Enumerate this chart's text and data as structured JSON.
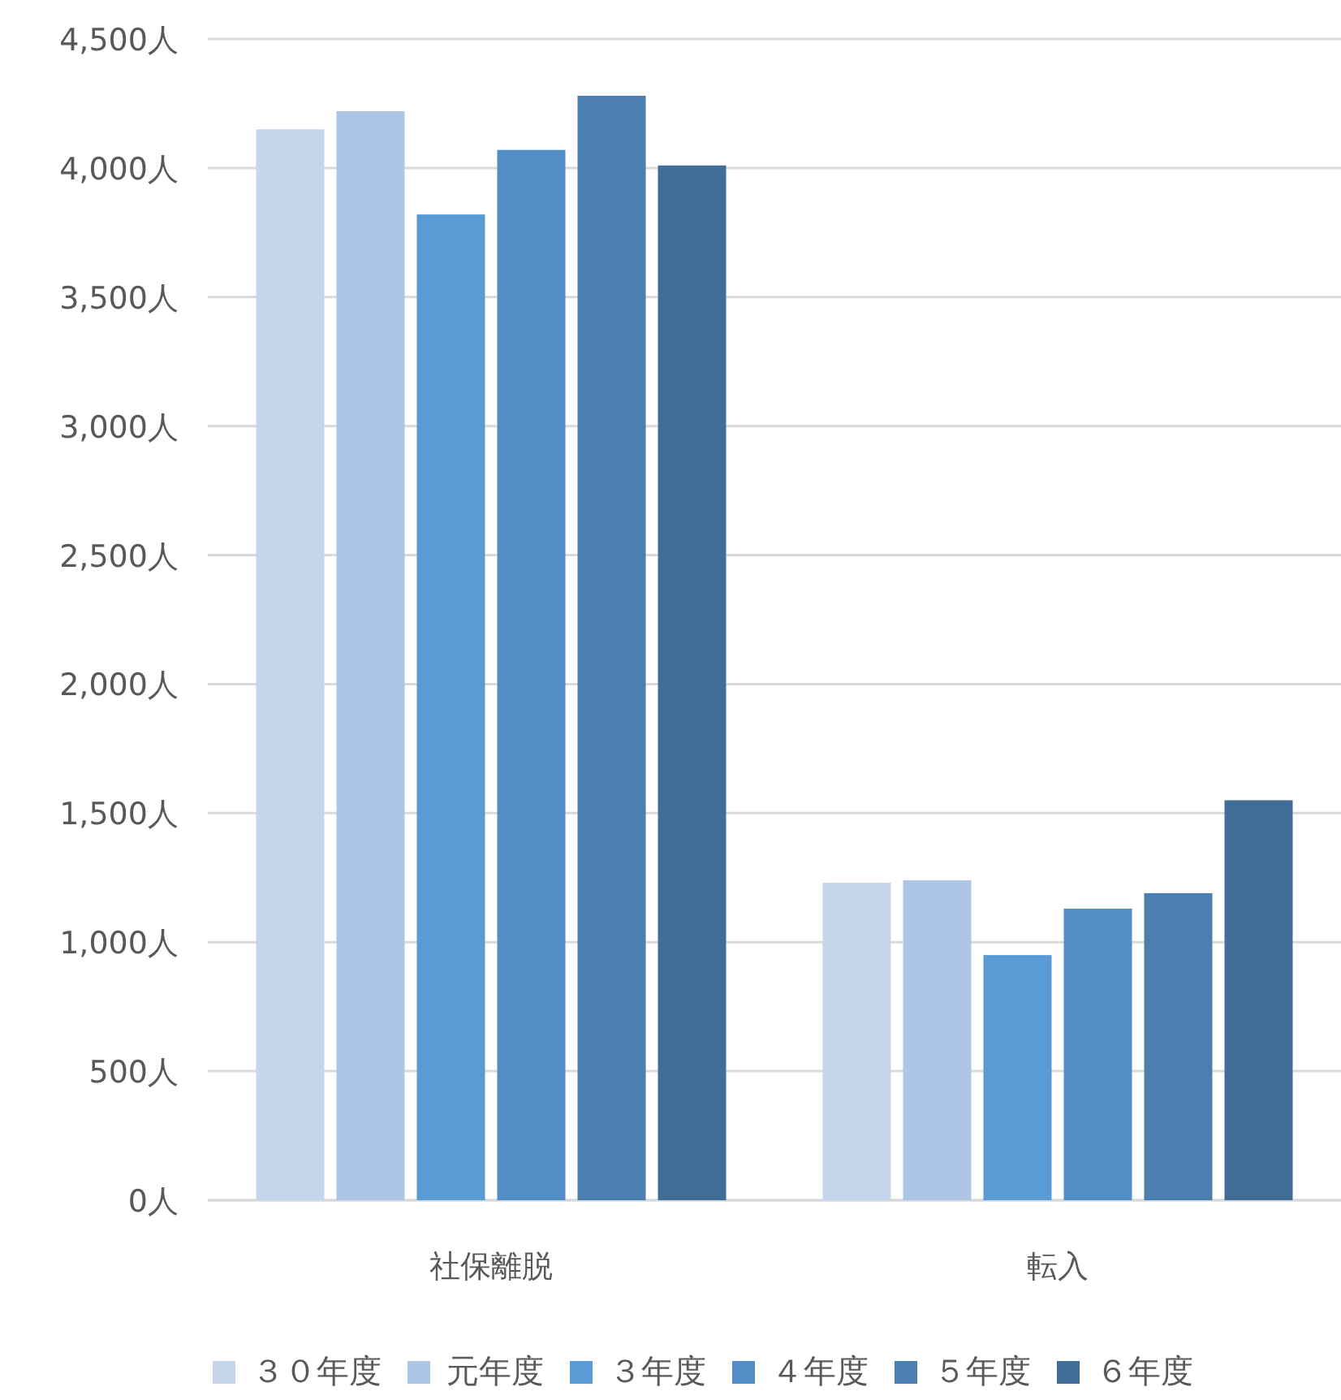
{
  "chart_data": {
    "type": "bar",
    "categories": [
      "社保離脱",
      "転入"
    ],
    "series": [
      {
        "name": "３０年度",
        "color": "#c5d5eb",
        "values": [
          4150,
          1230
        ]
      },
      {
        "name": "元年度",
        "color": "#adc6e5",
        "values": [
          4220,
          1240
        ]
      },
      {
        "name": "３年度",
        "color": "#5b9bd5",
        "values": [
          3820,
          950
        ]
      },
      {
        "name": "４年度",
        "color": "#528ec5",
        "values": [
          4070,
          1130
        ]
      },
      {
        "name": "５年度",
        "color": "#4a7fb0",
        "values": [
          4280,
          1190
        ]
      },
      {
        "name": "６年度",
        "color": "#416e97",
        "values": [
          4010,
          1550
        ]
      }
    ],
    "ylim": [
      0,
      4500
    ],
    "yticks": [
      {
        "value": 0,
        "label": "0人"
      },
      {
        "value": 500,
        "label": "500人"
      },
      {
        "value": 1000,
        "label": "1,000人"
      },
      {
        "value": 1500,
        "label": "1,500人"
      },
      {
        "value": 2000,
        "label": "2,000人"
      },
      {
        "value": 2500,
        "label": "2,500人"
      },
      {
        "value": 3000,
        "label": "3,000人"
      },
      {
        "value": 3500,
        "label": "3,500人"
      },
      {
        "value": 4000,
        "label": "4,000人"
      },
      {
        "value": 4500,
        "label": "4,500人"
      }
    ],
    "grid": "y",
    "legend": "bottom"
  }
}
